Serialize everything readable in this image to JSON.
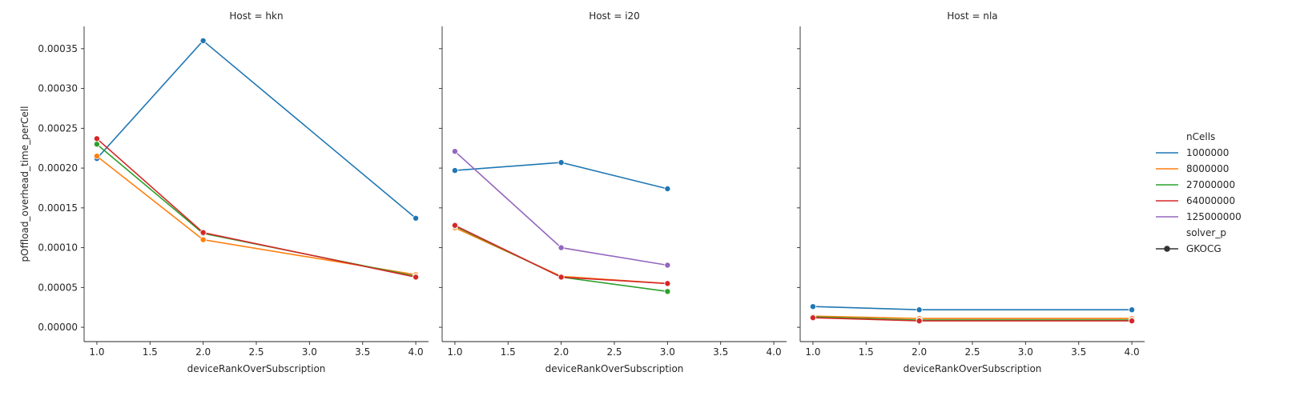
{
  "chart_data": {
    "type": "line",
    "ylabel": "pOffload_overhead_time_perCell",
    "xlabel": "deviceRankOverSubscription",
    "xlim": [
      0.88,
      4.12
    ],
    "ylim": [
      -1.8e-05,
      0.000378
    ],
    "xticks": [
      1.0,
      1.5,
      2.0,
      2.5,
      3.0,
      3.5,
      4.0
    ],
    "xtick_labels": [
      "1.0",
      "1.5",
      "2.0",
      "2.5",
      "3.0",
      "3.5",
      "4.0"
    ],
    "yticks": [
      0,
      5e-05,
      0.0001,
      0.00015,
      0.0002,
      0.00025,
      0.0003,
      0.00035
    ],
    "ytick_labels": [
      "0.00000",
      "0.00005",
      "0.00010",
      "0.00015",
      "0.00020",
      "0.00025",
      "0.00030",
      "0.00035"
    ],
    "legend": {
      "position": "right",
      "hue_title": "nCells",
      "style_title": "solver_p",
      "style_entries": [
        "GKOCG"
      ]
    },
    "series_colors": {
      "1000000": "#1f77b4",
      "8000000": "#ff7f0e",
      "27000000": "#2ca02c",
      "64000000": "#d62728",
      "125000000": "#9467bd"
    },
    "series_order": [
      "1000000",
      "8000000",
      "27000000",
      "64000000",
      "125000000"
    ],
    "panels": [
      {
        "title": "Host = hkn",
        "series": [
          {
            "name": "1000000",
            "x": [
              1,
              2,
              4
            ],
            "y": [
              0.000212,
              0.00036,
              0.000137
            ]
          },
          {
            "name": "8000000",
            "x": [
              1,
              2,
              4
            ],
            "y": [
              0.000215,
              0.00011,
              6.6e-05
            ]
          },
          {
            "name": "27000000",
            "x": [
              1,
              2,
              4
            ],
            "y": [
              0.00023,
              0.000118,
              6.4e-05
            ]
          },
          {
            "name": "64000000",
            "x": [
              1,
              2,
              4
            ],
            "y": [
              0.000237,
              0.000119,
              6.3e-05
            ]
          }
        ]
      },
      {
        "title": "Host = i20",
        "series": [
          {
            "name": "1000000",
            "x": [
              1,
              2,
              3
            ],
            "y": [
              0.000197,
              0.000207,
              0.000174
            ]
          },
          {
            "name": "8000000",
            "x": [
              1,
              2,
              3
            ],
            "y": [
              0.000125,
              6.4e-05,
              5.5e-05
            ]
          },
          {
            "name": "27000000",
            "x": [
              1,
              2,
              3
            ],
            "y": [
              0.000127,
              6.3e-05,
              4.5e-05
            ]
          },
          {
            "name": "64000000",
            "x": [
              1,
              2,
              3
            ],
            "y": [
              0.000128,
              6.3e-05,
              5.5e-05
            ]
          },
          {
            "name": "125000000",
            "x": [
              1,
              2,
              3
            ],
            "y": [
              0.000221,
              0.0001,
              7.8e-05
            ]
          }
        ]
      },
      {
        "title": "Host = nla",
        "series": [
          {
            "name": "1000000",
            "x": [
              1,
              2,
              4
            ],
            "y": [
              2.6e-05,
              2.2e-05,
              2.2e-05
            ]
          },
          {
            "name": "8000000",
            "x": [
              1,
              2,
              4
            ],
            "y": [
              1.4e-05,
              1.1e-05,
              1.1e-05
            ]
          },
          {
            "name": "27000000",
            "x": [
              1,
              2,
              4
            ],
            "y": [
              1.3e-05,
              9e-06,
              9e-06
            ]
          },
          {
            "name": "64000000",
            "x": [
              1,
              2,
              4
            ],
            "y": [
              1.2e-05,
              8e-06,
              8e-06
            ]
          }
        ]
      }
    ]
  }
}
